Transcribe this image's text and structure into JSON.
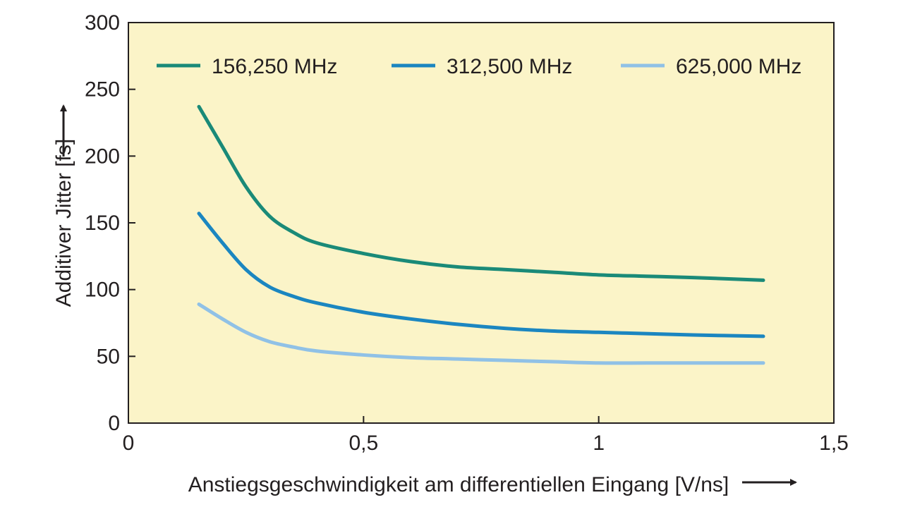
{
  "chart_data": {
    "type": "line",
    "title": "",
    "xlabel": "Anstiegsgeschwindigkeit am differentiellen Eingang [V/ns]",
    "ylabel": "Additiver Jitter [fs]",
    "xlim": [
      0,
      1.5
    ],
    "ylim": [
      0,
      300
    ],
    "x_ticks": [
      0,
      0.5,
      1,
      1.5
    ],
    "x_tick_labels": [
      "0",
      "0,5",
      "1",
      "1,5"
    ],
    "y_ticks": [
      0,
      50,
      100,
      150,
      200,
      250,
      300
    ],
    "y_tick_labels": [
      "0",
      "50",
      "100",
      "150",
      "200",
      "250",
      "300"
    ],
    "grid": false,
    "background_color": "#fbf4c8",
    "legend_position": "top",
    "series": [
      {
        "name": "156,250 MHz",
        "color": "#1a8a78",
        "points": [
          [
            0.15,
            237
          ],
          [
            0.2,
            207
          ],
          [
            0.25,
            177
          ],
          [
            0.3,
            155
          ],
          [
            0.35,
            143
          ],
          [
            0.4,
            135
          ],
          [
            0.5,
            127
          ],
          [
            0.6,
            121
          ],
          [
            0.7,
            117
          ],
          [
            0.8,
            115
          ],
          [
            0.9,
            113
          ],
          [
            1.0,
            111
          ],
          [
            1.1,
            110
          ],
          [
            1.2,
            109
          ],
          [
            1.35,
            107
          ]
        ]
      },
      {
        "name": "312,500 MHz",
        "color": "#1b86c0",
        "points": [
          [
            0.15,
            157
          ],
          [
            0.2,
            135
          ],
          [
            0.25,
            115
          ],
          [
            0.3,
            102
          ],
          [
            0.35,
            95
          ],
          [
            0.4,
            90
          ],
          [
            0.5,
            83
          ],
          [
            0.6,
            78
          ],
          [
            0.7,
            74
          ],
          [
            0.8,
            71
          ],
          [
            0.9,
            69
          ],
          [
            1.0,
            68
          ],
          [
            1.1,
            67
          ],
          [
            1.2,
            66
          ],
          [
            1.35,
            65
          ]
        ]
      },
      {
        "name": "625,000 MHz",
        "color": "#90c1e6",
        "points": [
          [
            0.15,
            89
          ],
          [
            0.2,
            78
          ],
          [
            0.25,
            68
          ],
          [
            0.3,
            61
          ],
          [
            0.35,
            57
          ],
          [
            0.4,
            54
          ],
          [
            0.5,
            51
          ],
          [
            0.6,
            49
          ],
          [
            0.7,
            48
          ],
          [
            0.8,
            47
          ],
          [
            0.9,
            46
          ],
          [
            1.0,
            45
          ],
          [
            1.1,
            45
          ],
          [
            1.2,
            45
          ],
          [
            1.35,
            45
          ]
        ]
      }
    ]
  }
}
